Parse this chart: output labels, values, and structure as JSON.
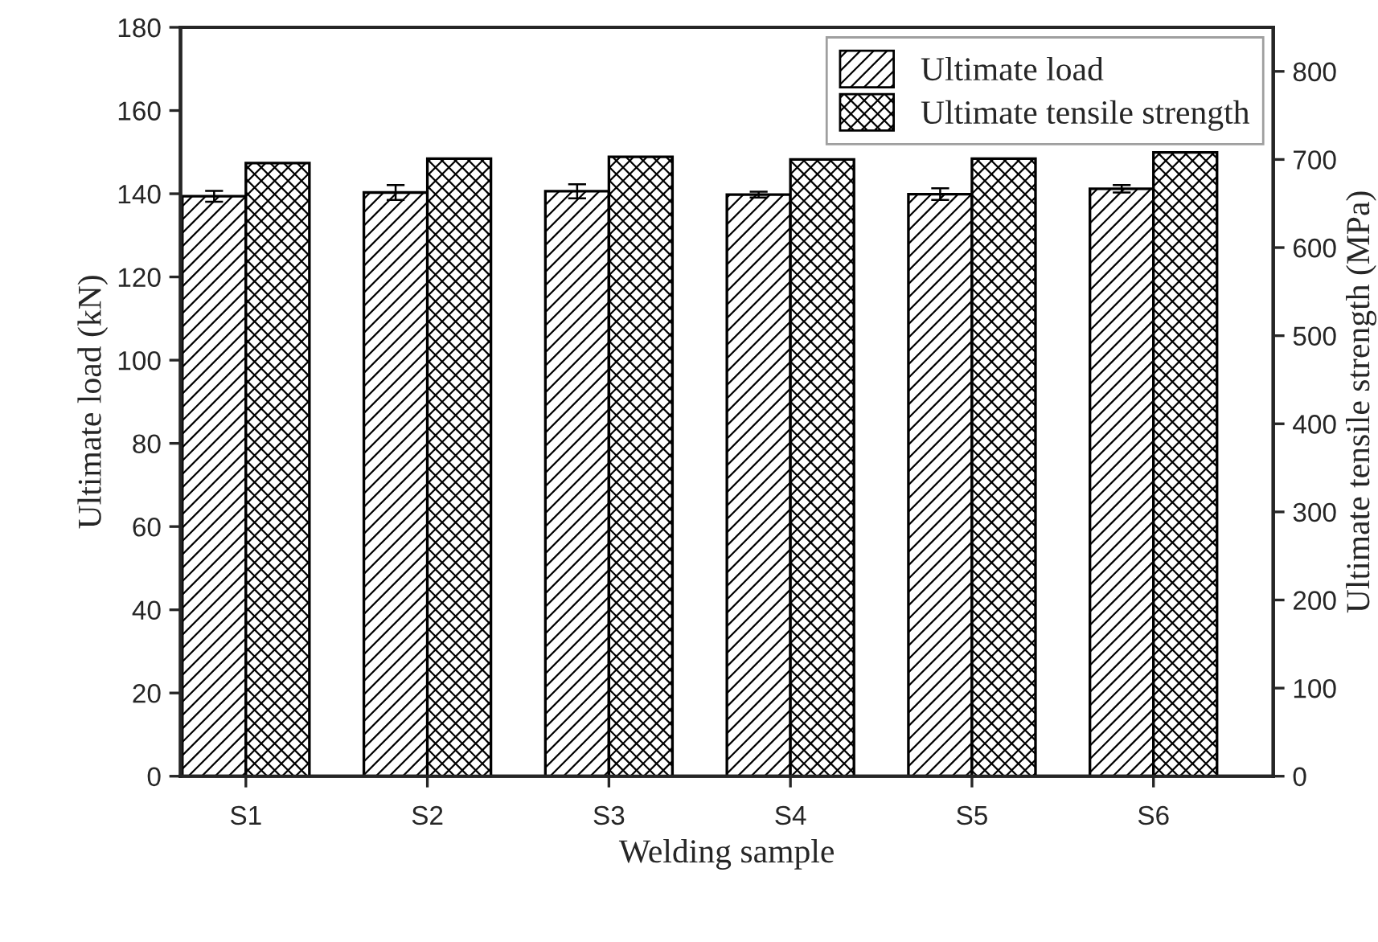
{
  "chart_data": {
    "type": "bar",
    "xlabel": "Welding sample",
    "ylabel": "Ultimate load (kN)",
    "y2label": "Ultimate tensile strength (MPa)",
    "categories": [
      "S1",
      "S2",
      "S3",
      "S4",
      "S5",
      "S6"
    ],
    "series": [
      {
        "name": "Ultimate load",
        "color": "#000000",
        "values": [
          139.4,
          140.3,
          140.6,
          139.8,
          139.9,
          141.2
        ],
        "errors": [
          1.3,
          1.8,
          1.7,
          0.7,
          1.4,
          0.9
        ]
      },
      {
        "name": "Ultimate tensile strength",
        "color": "#000000",
        "axis": "y2",
        "values": [
          696,
          701,
          703,
          700,
          701,
          708
        ]
      }
    ],
    "ylim": [
      0,
      180
    ],
    "yticks": [
      0,
      20,
      40,
      60,
      80,
      100,
      120,
      140,
      160,
      180
    ],
    "y2lim": [
      0,
      850
    ],
    "y2ticks": [
      0,
      100,
      200,
      300,
      400,
      500,
      600,
      700,
      800
    ],
    "grid": false,
    "legend": "top right"
  }
}
